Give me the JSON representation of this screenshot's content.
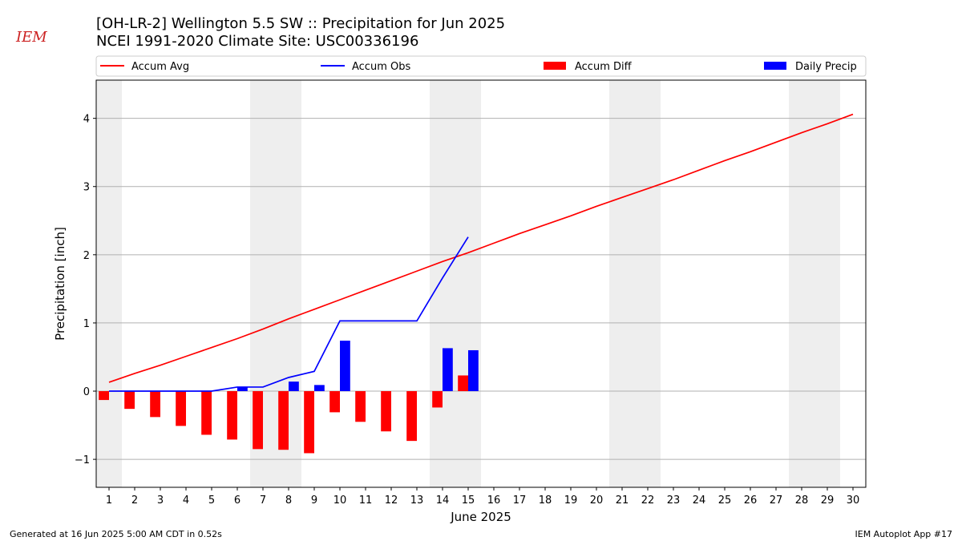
{
  "chart_data": {
    "type": "combo",
    "title": "[OH-LR-2] Wellington 5.5 SW :: Precipitation for Jun 2025",
    "subtitle": "NCEI 1991-2020 Climate Site: USC00336196",
    "logo_text": "IEM",
    "x_label": "June 2025",
    "y_label": "Precipitation [inch]",
    "footer_left": "Generated at 16 Jun 2025 5:00 AM CDT in 0.52s",
    "footer_right": "IEM Autoplot App #17",
    "x": [
      1,
      2,
      3,
      4,
      5,
      6,
      7,
      8,
      9,
      10,
      11,
      12,
      13,
      14,
      15,
      16,
      17,
      18,
      19,
      20,
      21,
      22,
      23,
      24,
      25,
      26,
      27,
      28,
      29,
      30
    ],
    "xlim": [
      0.5,
      30.5
    ],
    "xticks": [
      1,
      2,
      3,
      4,
      5,
      6,
      7,
      8,
      9,
      10,
      11,
      12,
      13,
      14,
      15,
      16,
      17,
      18,
      19,
      20,
      21,
      22,
      23,
      24,
      25,
      26,
      27,
      28,
      29,
      30
    ],
    "ylim": [
      -1.41,
      4.56
    ],
    "yticks": [
      {
        "value": -1,
        "label": "−1"
      },
      0,
      1,
      2,
      3,
      4
    ],
    "grid": true,
    "shaded_days": [
      1,
      7,
      8,
      14,
      15,
      21,
      22,
      28,
      29
    ],
    "series": [
      {
        "name": "Accum Avg",
        "type": "line",
        "color": "#ff0000",
        "values": [
          0.13,
          0.26,
          0.38,
          0.51,
          0.64,
          0.77,
          0.91,
          1.06,
          1.2,
          1.34,
          1.48,
          1.62,
          1.76,
          1.9,
          2.03,
          2.17,
          2.31,
          2.44,
          2.57,
          2.71,
          2.84,
          2.97,
          3.1,
          3.24,
          3.38,
          3.51,
          3.65,
          3.79,
          3.92,
          4.06
        ]
      },
      {
        "name": "Accum Obs",
        "type": "line",
        "color": "#0000ff",
        "values": [
          0,
          0,
          0,
          0,
          0,
          0.06,
          0.06,
          0.2,
          0.29,
          1.03,
          1.03,
          1.03,
          1.03,
          1.66,
          2.26,
          null,
          null,
          null,
          null,
          null,
          null,
          null,
          null,
          null,
          null,
          null,
          null,
          null,
          null,
          null
        ]
      },
      {
        "name": "Accum Diff",
        "type": "bar",
        "color": "#ff0000",
        "values": [
          -0.13,
          -0.26,
          -0.38,
          -0.51,
          -0.64,
          -0.71,
          -0.85,
          -0.86,
          -0.91,
          -0.31,
          -0.45,
          -0.59,
          -0.73,
          -0.24,
          0.23,
          null,
          null,
          null,
          null,
          null,
          null,
          null,
          null,
          null,
          null,
          null,
          null,
          null,
          null,
          null
        ]
      },
      {
        "name": "Daily Precip",
        "type": "bar",
        "color": "#0000ff",
        "values": [
          0,
          0,
          0,
          0,
          0,
          0.06,
          0,
          0.14,
          0.09,
          0.74,
          0,
          0,
          0,
          0.63,
          0.6,
          null,
          null,
          null,
          null,
          null,
          null,
          null,
          null,
          null,
          null,
          null,
          null,
          null,
          null,
          null
        ]
      }
    ]
  }
}
